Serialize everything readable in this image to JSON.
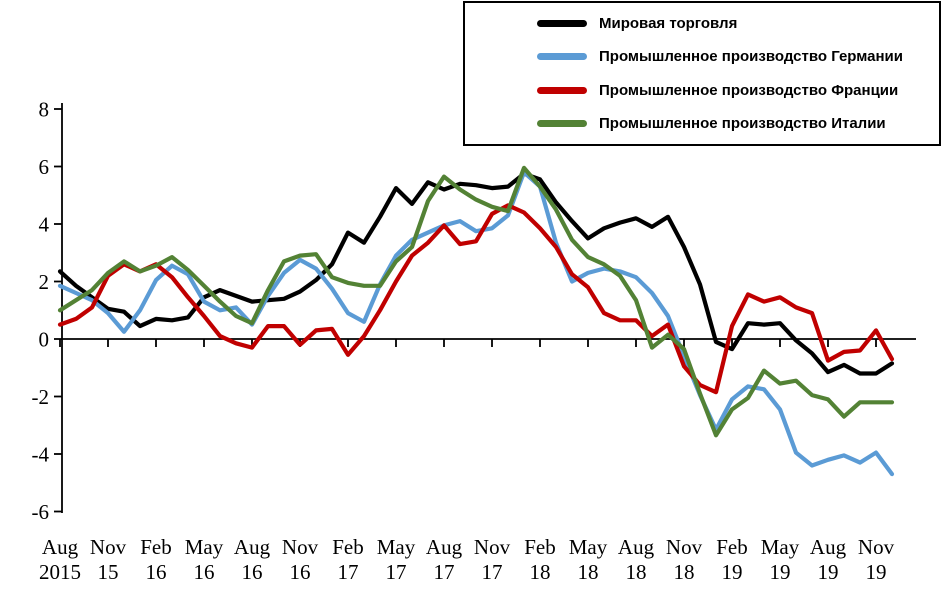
{
  "chart_data": {
    "type": "line",
    "ylim": [
      -6,
      8
    ],
    "ytick_values": [
      8,
      6,
      4,
      2,
      0,
      -2,
      -4,
      -6
    ],
    "grid": "zero-line-only",
    "legend_position": "top-right",
    "x_tick_labels": [
      [
        "Aug",
        "2015"
      ],
      [
        "Nov",
        "15"
      ],
      [
        "Feb",
        "16"
      ],
      [
        "May",
        "16"
      ],
      [
        "Aug",
        "16"
      ],
      [
        "Nov",
        "16"
      ],
      [
        "Feb",
        "17"
      ],
      [
        "May",
        "17"
      ],
      [
        "Aug",
        "17"
      ],
      [
        "Nov",
        "17"
      ],
      [
        "Feb",
        "18"
      ],
      [
        "May",
        "18"
      ],
      [
        "Aug",
        "18"
      ],
      [
        "Nov",
        "18"
      ],
      [
        "Feb",
        "19"
      ],
      [
        "May",
        "19"
      ],
      [
        "Aug",
        "19"
      ],
      [
        "Nov",
        "19"
      ]
    ],
    "months": [
      "Aug 2015",
      "Sep 2015",
      "Oct 2015",
      "Nov 2015",
      "Dec 2015",
      "Jan 2016",
      "Feb 2016",
      "Mar 2016",
      "Apr 2016",
      "May 2016",
      "Jun 2016",
      "Jul 2016",
      "Aug 2016",
      "Sep 2016",
      "Oct 2016",
      "Nov 2016",
      "Dec 2016",
      "Jan 2017",
      "Feb 2017",
      "Mar 2017",
      "Apr 2017",
      "May 2017",
      "Jun 2017",
      "Jul 2017",
      "Aug 2017",
      "Sep 2017",
      "Oct 2017",
      "Nov 2017",
      "Dec 2017",
      "Jan 2018",
      "Feb 2018",
      "Mar 2018",
      "Apr 2018",
      "May 2018",
      "Jun 2018",
      "Jul 2018",
      "Aug 2018",
      "Sep 2018",
      "Oct 2018",
      "Nov 2018",
      "Dec 2018",
      "Jan 2019",
      "Feb 2019",
      "Mar 2019",
      "Apr 2019",
      "May 2019",
      "Jun 2019",
      "Jul 2019",
      "Aug 2019",
      "Sep 2019",
      "Oct 2019",
      "Nov 2019",
      "Dec 2019"
    ],
    "series": [
      {
        "id": "world-trade",
        "name": "Мировая торговля",
        "color": "#000000",
        "values": [
          2.35,
          1.85,
          1.45,
          1.05,
          0.95,
          0.45,
          0.7,
          0.65,
          0.75,
          1.45,
          1.7,
          1.5,
          1.3,
          1.35,
          1.4,
          1.65,
          2.05,
          2.6,
          3.7,
          3.35,
          4.25,
          5.25,
          4.7,
          5.45,
          5.2,
          5.4,
          5.35,
          5.25,
          5.3,
          5.75,
          5.55,
          4.75,
          4.1,
          3.5,
          3.85,
          4.05,
          4.2,
          3.9,
          4.25,
          3.2,
          1.9,
          -0.1,
          -0.35,
          0.55,
          0.5,
          0.55,
          -0.05,
          -0.5,
          -1.15,
          -0.9,
          -1.2,
          -1.2,
          -0.85
        ]
      },
      {
        "id": "germany",
        "name": "Промышленное производство Германии",
        "color": "#5B9BD5",
        "values": [
          1.85,
          1.6,
          1.35,
          0.9,
          0.25,
          1.0,
          2.05,
          2.55,
          2.25,
          1.3,
          1.0,
          1.1,
          0.5,
          1.5,
          2.3,
          2.75,
          2.45,
          1.75,
          0.9,
          0.6,
          1.9,
          2.9,
          3.45,
          3.7,
          3.95,
          4.1,
          3.75,
          3.85,
          4.3,
          5.8,
          5.3,
          3.35,
          2.0,
          2.3,
          2.45,
          2.35,
          2.15,
          1.6,
          0.8,
          -0.6,
          -1.95,
          -3.15,
          -2.1,
          -1.65,
          -1.75,
          -2.45,
          -3.95,
          -4.4,
          -4.2,
          -4.05,
          -4.3,
          -3.95,
          -4.7
        ]
      },
      {
        "id": "france",
        "name": "Промышленное производство Франции",
        "color": "#C00000",
        "values": [
          0.5,
          0.7,
          1.1,
          2.2,
          2.6,
          2.35,
          2.6,
          2.15,
          1.45,
          0.8,
          0.1,
          -0.15,
          -0.3,
          0.45,
          0.45,
          -0.2,
          0.3,
          0.35,
          -0.55,
          0.1,
          1.0,
          2.0,
          2.9,
          3.35,
          3.95,
          3.3,
          3.4,
          4.35,
          4.65,
          4.4,
          3.85,
          3.2,
          2.25,
          1.8,
          0.9,
          0.65,
          0.65,
          0.1,
          0.5,
          -0.95,
          -1.6,
          -1.85,
          0.45,
          1.55,
          1.3,
          1.45,
          1.1,
          0.9,
          -0.75,
          -0.45,
          -0.4,
          0.3,
          -0.7
        ]
      },
      {
        "id": "italy",
        "name": "Промышленное производство Италии",
        "color": "#538235",
        "values": [
          1.0,
          1.35,
          1.7,
          2.3,
          2.7,
          2.35,
          2.55,
          2.85,
          2.4,
          1.85,
          1.3,
          0.8,
          0.55,
          1.7,
          2.7,
          2.9,
          2.95,
          2.15,
          1.95,
          1.85,
          1.85,
          2.7,
          3.2,
          4.8,
          5.65,
          5.2,
          4.85,
          4.6,
          4.45,
          5.95,
          5.3,
          4.5,
          3.45,
          2.85,
          2.6,
          2.2,
          1.35,
          -0.3,
          0.15,
          -0.35,
          -1.9,
          -3.35,
          -2.45,
          -2.05,
          -1.1,
          -1.55,
          -1.45,
          -1.95,
          -2.1,
          -2.7,
          -2.2,
          -2.2,
          -2.2
        ]
      }
    ]
  }
}
